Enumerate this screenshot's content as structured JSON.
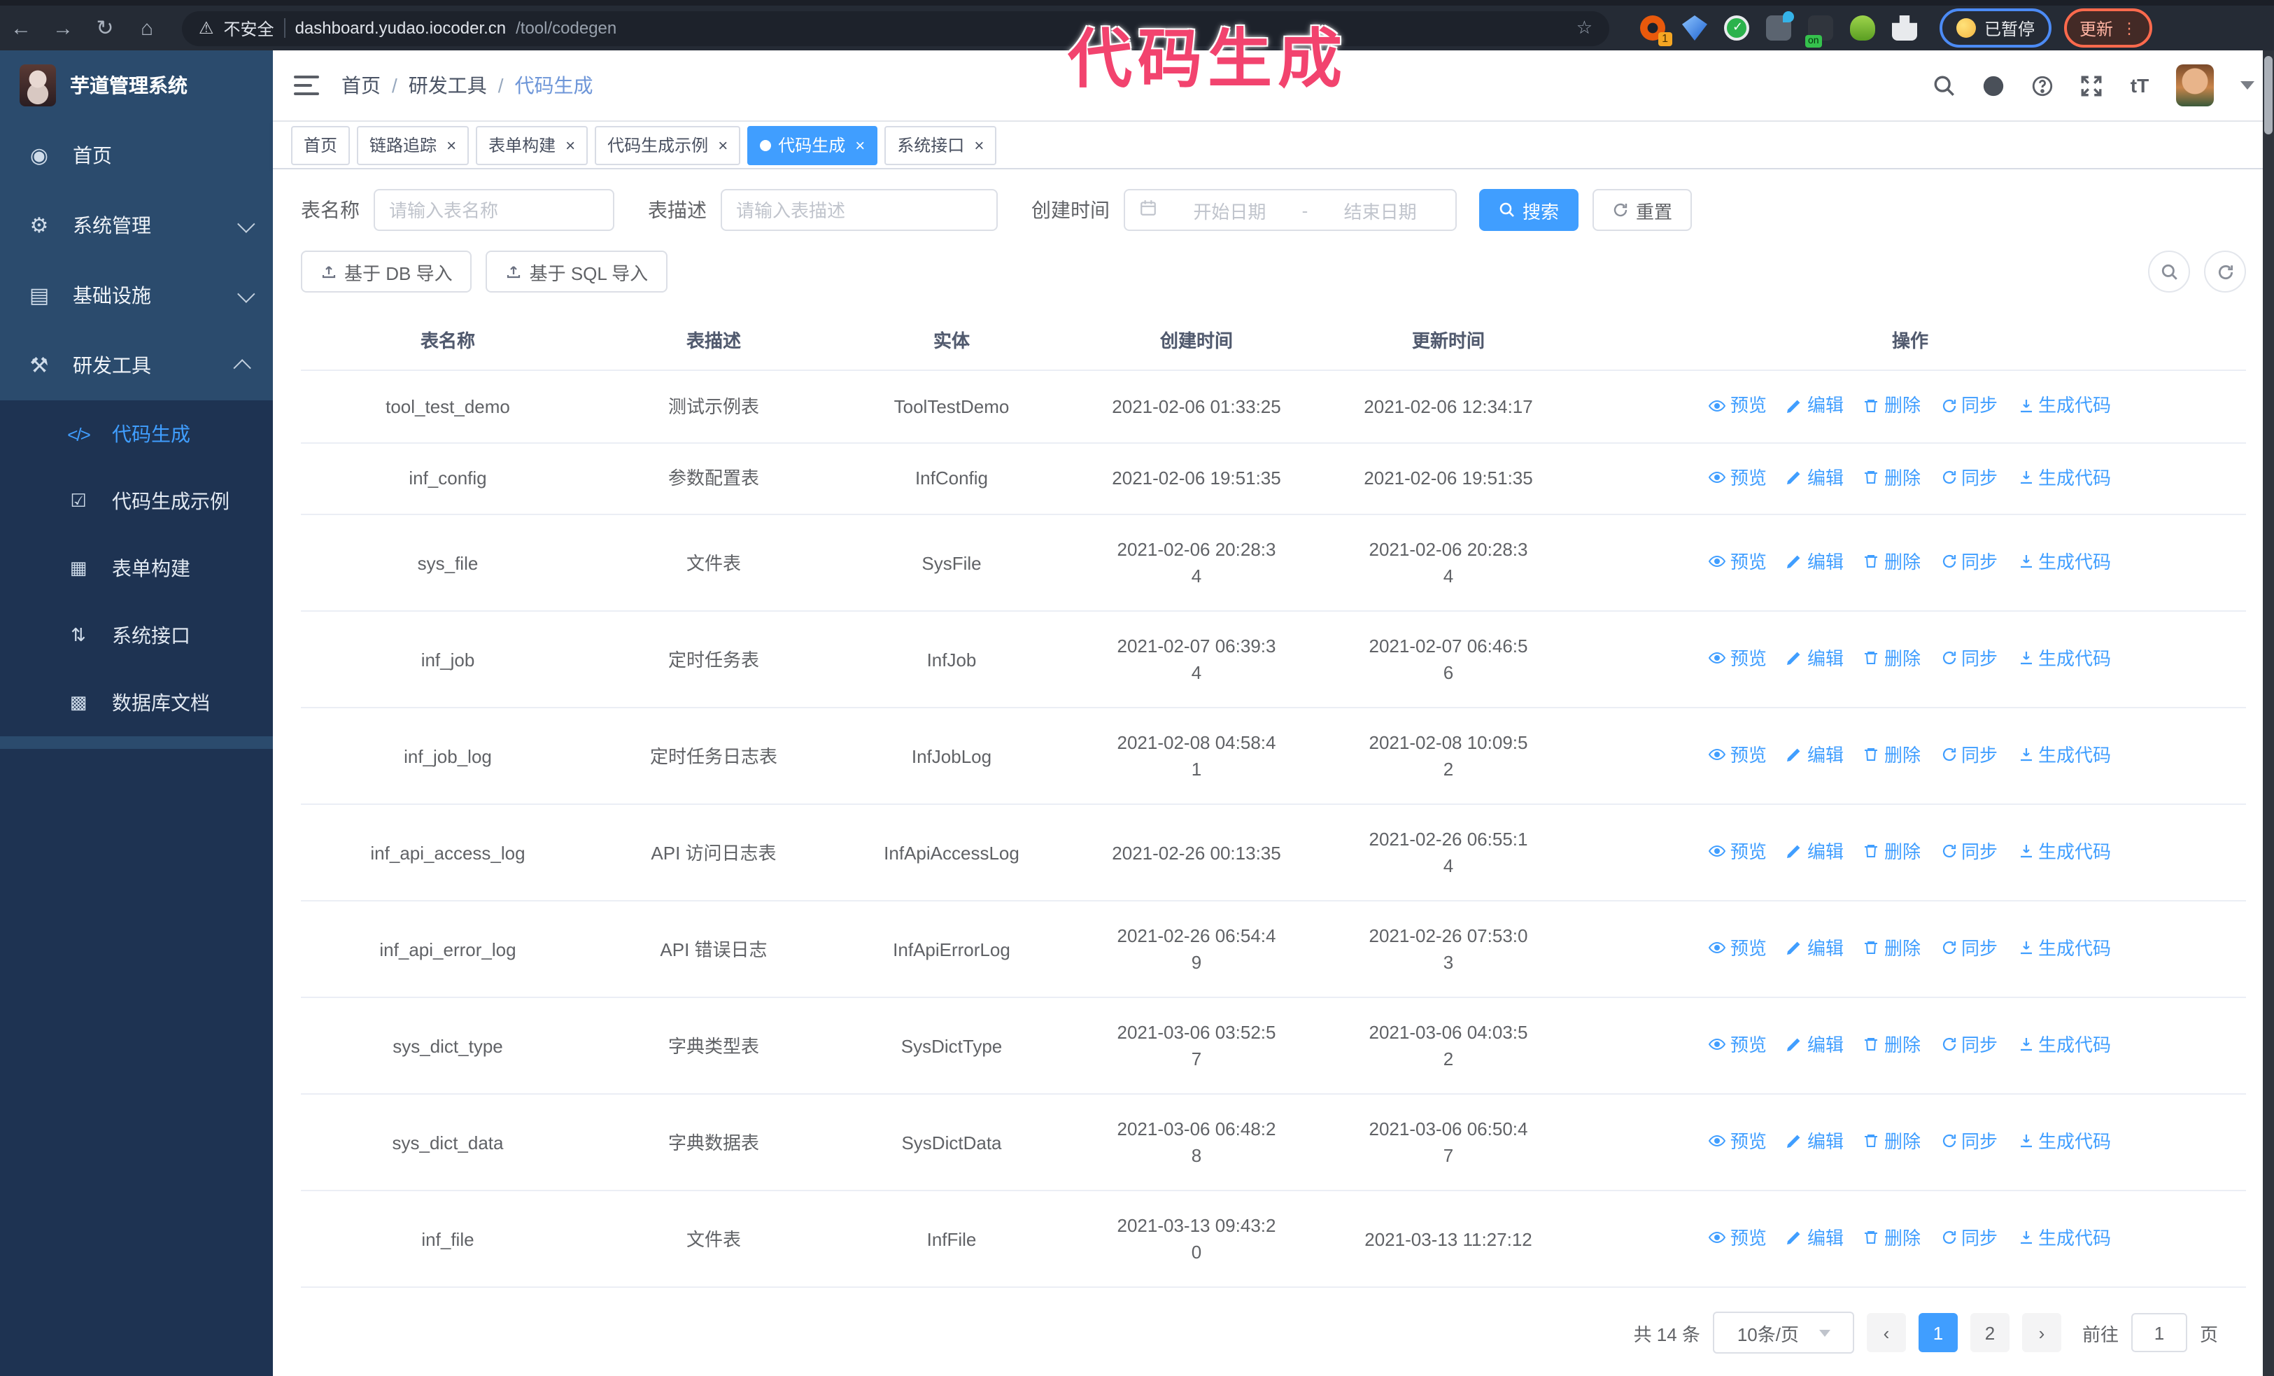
{
  "browser": {
    "security_label": "不安全",
    "url_host": "dashboard.yudao.iocoder.cn",
    "url_path": "/tool/codegen",
    "extension_badge": "1",
    "extension_on_badge": "on",
    "paused_label": "已暂停",
    "update_label": "更新"
  },
  "annotation": "代码生成",
  "app": {
    "logo_title": "芋道管理系统"
  },
  "breadcrumb": {
    "items": [
      "首页",
      "研发工具",
      "代码生成"
    ],
    "separator": "/"
  },
  "sidebar": {
    "items": [
      {
        "label": "首页",
        "icon": "dashboard-icon"
      },
      {
        "label": "系统管理",
        "icon": "gear-icon",
        "chevron": "down"
      },
      {
        "label": "基础设施",
        "icon": "infrastructure-icon",
        "chevron": "down"
      },
      {
        "label": "研发工具",
        "icon": "tools-icon",
        "chevron": "up",
        "children": [
          {
            "label": "代码生成",
            "icon": "code-icon",
            "active": true
          },
          {
            "label": "代码生成示例",
            "icon": "example-icon"
          },
          {
            "label": "表单构建",
            "icon": "form-icon"
          },
          {
            "label": "系统接口",
            "icon": "api-icon"
          },
          {
            "label": "数据库文档",
            "icon": "database-doc-icon"
          }
        ]
      }
    ]
  },
  "tabs": [
    {
      "label": "首页",
      "closable": false,
      "active": false
    },
    {
      "label": "链路追踪",
      "closable": true,
      "active": false
    },
    {
      "label": "表单构建",
      "closable": true,
      "active": false
    },
    {
      "label": "代码生成示例",
      "closable": true,
      "active": false
    },
    {
      "label": "代码生成",
      "closable": true,
      "active": true
    },
    {
      "label": "系统接口",
      "closable": true,
      "active": false
    }
  ],
  "filters": {
    "name_label": "表名称",
    "name_placeholder": "请输入表名称",
    "desc_label": "表描述",
    "desc_placeholder": "请输入表描述",
    "time_label": "创建时间",
    "start_placeholder": "开始日期",
    "range_separator": "-",
    "end_placeholder": "结束日期",
    "search_label": "搜索",
    "reset_label": "重置"
  },
  "import_buttons": {
    "db": "基于 DB 导入",
    "sql": "基于 SQL 导入"
  },
  "table": {
    "columns": [
      "表名称",
      "表描述",
      "实体",
      "创建时间",
      "更新时间",
      "操作"
    ],
    "actions": [
      "预览",
      "编辑",
      "删除",
      "同步",
      "生成代码"
    ],
    "rows": [
      {
        "name": "tool_test_demo",
        "desc": "测试示例表",
        "entity": "ToolTestDemo",
        "created": "2021-02-06 01:33:25",
        "updated": "2021-02-06 12:34:17"
      },
      {
        "name": "inf_config",
        "desc": "参数配置表",
        "entity": "InfConfig",
        "created": "2021-02-06 19:51:35",
        "updated": "2021-02-06 19:51:35"
      },
      {
        "name": "sys_file",
        "desc": "文件表",
        "entity": "SysFile",
        "created": "2021-02-06 20:28:3\n4",
        "updated": "2021-02-06 20:28:3\n4"
      },
      {
        "name": "inf_job",
        "desc": "定时任务表",
        "entity": "InfJob",
        "created": "2021-02-07 06:39:3\n4",
        "updated": "2021-02-07 06:46:5\n6"
      },
      {
        "name": "inf_job_log",
        "desc": "定时任务日志表",
        "entity": "InfJobLog",
        "created": "2021-02-08 04:58:4\n1",
        "updated": "2021-02-08 10:09:5\n2"
      },
      {
        "name": "inf_api_access_log",
        "desc": "API 访问日志表",
        "entity": "InfApiAccessLog",
        "created": "2021-02-26 00:13:35",
        "updated": "2021-02-26 06:55:1\n4"
      },
      {
        "name": "inf_api_error_log",
        "desc": "API 错误日志",
        "entity": "InfApiErrorLog",
        "created": "2021-02-26 06:54:4\n9",
        "updated": "2021-02-26 07:53:0\n3"
      },
      {
        "name": "sys_dict_type",
        "desc": "字典类型表",
        "entity": "SysDictType",
        "created": "2021-03-06 03:52:5\n7",
        "updated": "2021-03-06 04:03:5\n2"
      },
      {
        "name": "sys_dict_data",
        "desc": "字典数据表",
        "entity": "SysDictData",
        "created": "2021-03-06 06:48:2\n8",
        "updated": "2021-03-06 06:50:4\n7"
      },
      {
        "name": "inf_file",
        "desc": "文件表",
        "entity": "InfFile",
        "created": "2021-03-13 09:43:2\n0",
        "updated": "2021-03-13 11:27:12"
      }
    ]
  },
  "pagination": {
    "total": "共 14 条",
    "page_size": "10条/页",
    "pages": [
      "1",
      "2"
    ],
    "active_page": "1",
    "goto_label": "前往",
    "goto_value": "1",
    "unit_label": "页"
  },
  "colors": {
    "primary": "#409eff",
    "annotation": "#f2436e",
    "sidebar": "#2b4b6d",
    "submenu": "#1e3352"
  }
}
